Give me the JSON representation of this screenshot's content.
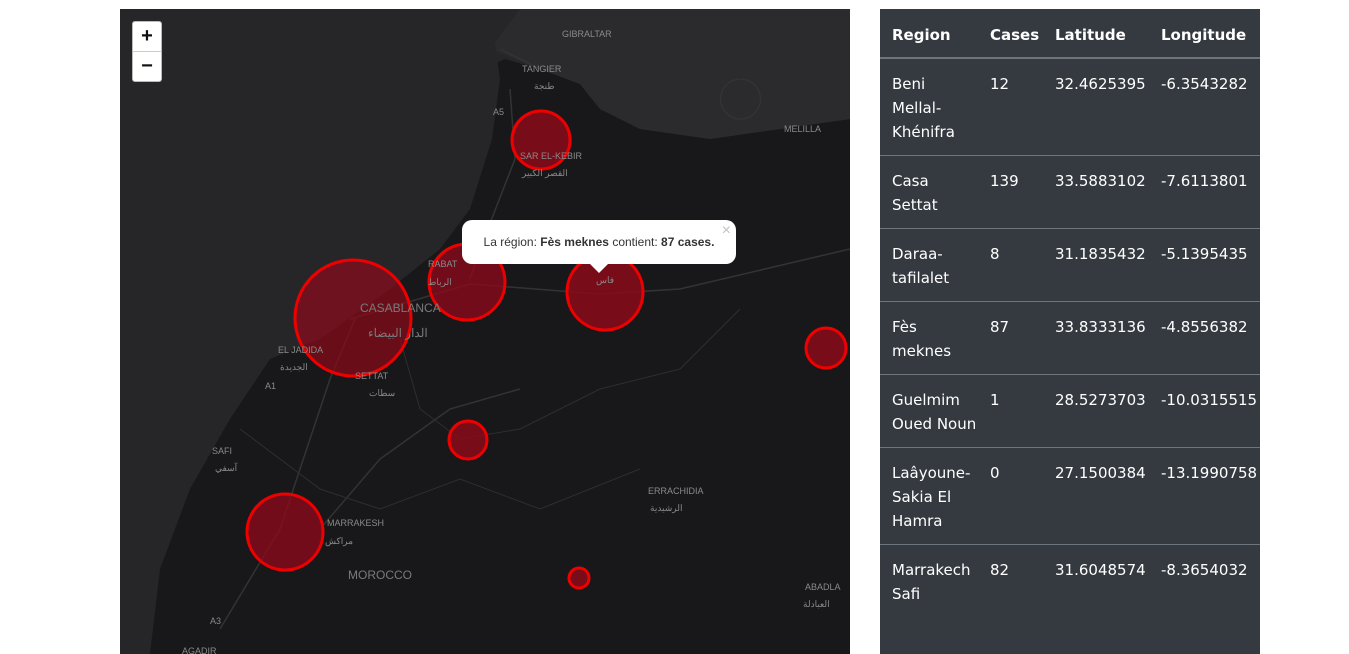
{
  "zoom": {
    "in": "+",
    "out": "−"
  },
  "map_labels": [
    {
      "text": "GIBRALTAR"
    },
    {
      "text": "TANGIER"
    },
    {
      "text": "طنجة"
    },
    {
      "text": "MELILLA"
    },
    {
      "text": "SAR EL-KEBIR"
    },
    {
      "text": "القصر الكبير"
    },
    {
      "text": "RABAT"
    },
    {
      "text": "الرباط"
    },
    {
      "text": "فاس"
    },
    {
      "text": "CASABLANCA"
    },
    {
      "text": "الدار البيضاء"
    },
    {
      "text": "EL JADIDA"
    },
    {
      "text": "الجديدة"
    },
    {
      "text": "SETTAT"
    },
    {
      "text": "سطات"
    },
    {
      "text": "SAFI"
    },
    {
      "text": "آسفي"
    },
    {
      "text": "MARRAKESH"
    },
    {
      "text": "مراكش"
    },
    {
      "text": "MOROCCO"
    },
    {
      "text": "ERRACHIDIA"
    },
    {
      "text": "الرشيدية"
    },
    {
      "text": "ABADLA"
    },
    {
      "text": "العبادلة"
    },
    {
      "text": "AGADIR"
    },
    {
      "text": "A5"
    },
    {
      "text": "A1"
    },
    {
      "text": "A3"
    }
  ],
  "popup": {
    "prefix": "La région:",
    "region": "Fès meknes",
    "middle": "contient:",
    "count": "87 cases.",
    "close": "×"
  },
  "table": {
    "header": [
      "Region",
      "Cases",
      "Latitude",
      "Longitude"
    ],
    "rows": [
      [
        "Beni Mellal-Khénifra",
        "12",
        "32.4625395",
        "-6.3543282"
      ],
      [
        "Casa Settat",
        "139",
        "33.5883102",
        "-7.6113801"
      ],
      [
        "Daraa-tafilalet",
        "8",
        "31.1835432",
        "-5.1395435"
      ],
      [
        "Fès meknes",
        "87",
        "33.8333136",
        "-4.8556382"
      ],
      [
        "Guelmim Oued Noun",
        "1",
        "28.5273703",
        "-10.0315515"
      ],
      [
        "Laâyoune-Sakia El Hamra",
        "0",
        "27.1500384",
        "-13.1990758"
      ],
      [
        "Marrakech Safi",
        "82",
        "31.6048574",
        "-8.3654032"
      ]
    ]
  }
}
